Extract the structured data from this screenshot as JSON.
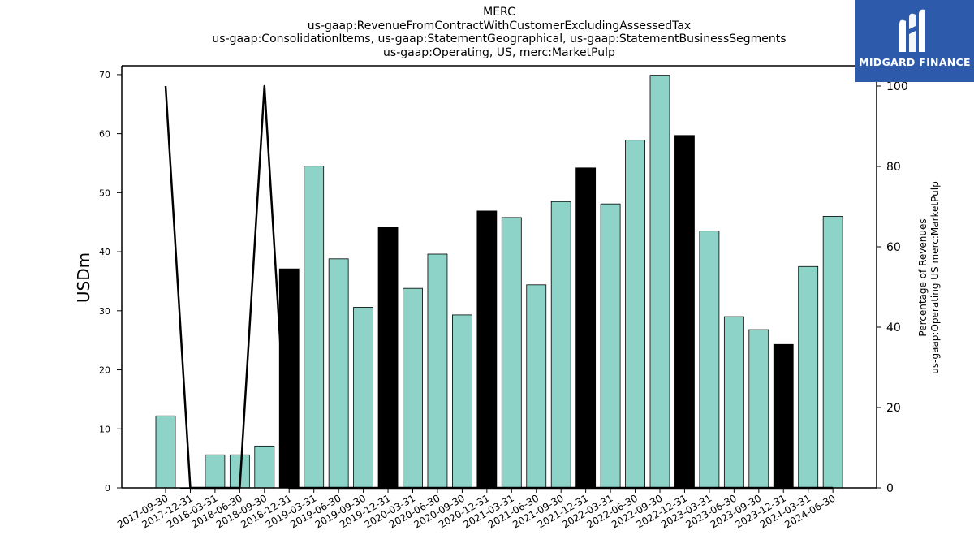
{
  "chart_data": {
    "type": "bar",
    "title_lines": [
      "MERC",
      "us-gaap:RevenueFromContractWithCustomerExcludingAssessedTax",
      "us-gaap:ConsolidationItems, us-gaap:StatementGeographical, us-gaap:StatementBusinessSegments",
      "us-gaap:Operating, US, merc:MarketPulp"
    ],
    "ylabel": "USDm",
    "y2label_lines": [
      "Percentage of Revenues",
      "us-gaap:Operating US merc:MarketPulp"
    ],
    "ylim": [
      0,
      71.5
    ],
    "y_ticks": [
      0,
      10,
      20,
      30,
      40,
      50,
      60,
      70
    ],
    "y2lim": [
      0,
      100
    ],
    "y2_ticks": [
      0,
      20,
      40,
      60,
      80,
      100
    ],
    "categories": [
      "2017-09-30",
      "2017-12-31",
      "2018-03-31",
      "2018-06-30",
      "2018-09-30",
      "2018-12-31",
      "2019-03-31",
      "2019-06-30",
      "2019-09-30",
      "2019-12-31",
      "2020-03-31",
      "2020-06-30",
      "2020-09-30",
      "2020-12-31",
      "2021-03-31",
      "2021-06-30",
      "2021-09-30",
      "2021-12-31",
      "2022-03-31",
      "2022-06-30",
      "2022-09-30",
      "2022-12-31",
      "2023-03-31",
      "2023-06-30",
      "2023-09-30",
      "2023-12-31",
      "2024-03-31",
      "2024-06-30"
    ],
    "values": [
      12.2,
      0,
      5.6,
      5.6,
      7.1,
      37.1,
      54.5,
      38.8,
      30.6,
      44.1,
      33.8,
      39.6,
      29.3,
      46.9,
      45.8,
      34.4,
      48.5,
      54.2,
      48.1,
      58.9,
      69.9,
      59.7,
      43.5,
      29.0,
      26.8,
      24.3,
      37.5,
      46.0
    ],
    "bar_highlight": [
      false,
      false,
      false,
      false,
      false,
      true,
      false,
      false,
      false,
      true,
      false,
      false,
      false,
      true,
      false,
      false,
      false,
      true,
      false,
      false,
      false,
      true,
      false,
      false,
      false,
      true,
      false,
      false
    ],
    "line_series": {
      "axis": "right",
      "values": [
        100,
        0,
        0,
        0,
        100,
        0,
        0,
        0,
        0,
        0,
        0,
        0,
        0,
        0,
        0,
        0,
        0,
        0,
        0,
        0,
        0,
        0,
        0,
        0,
        0,
        0,
        0,
        0
      ]
    },
    "grid": false,
    "colors": {
      "bar": "#8dd3c7",
      "bar_highlight": "#000000",
      "line": "#000000"
    }
  },
  "logo": {
    "name": "MIDGARD FINANCE",
    "color": "#2e5aac"
  }
}
